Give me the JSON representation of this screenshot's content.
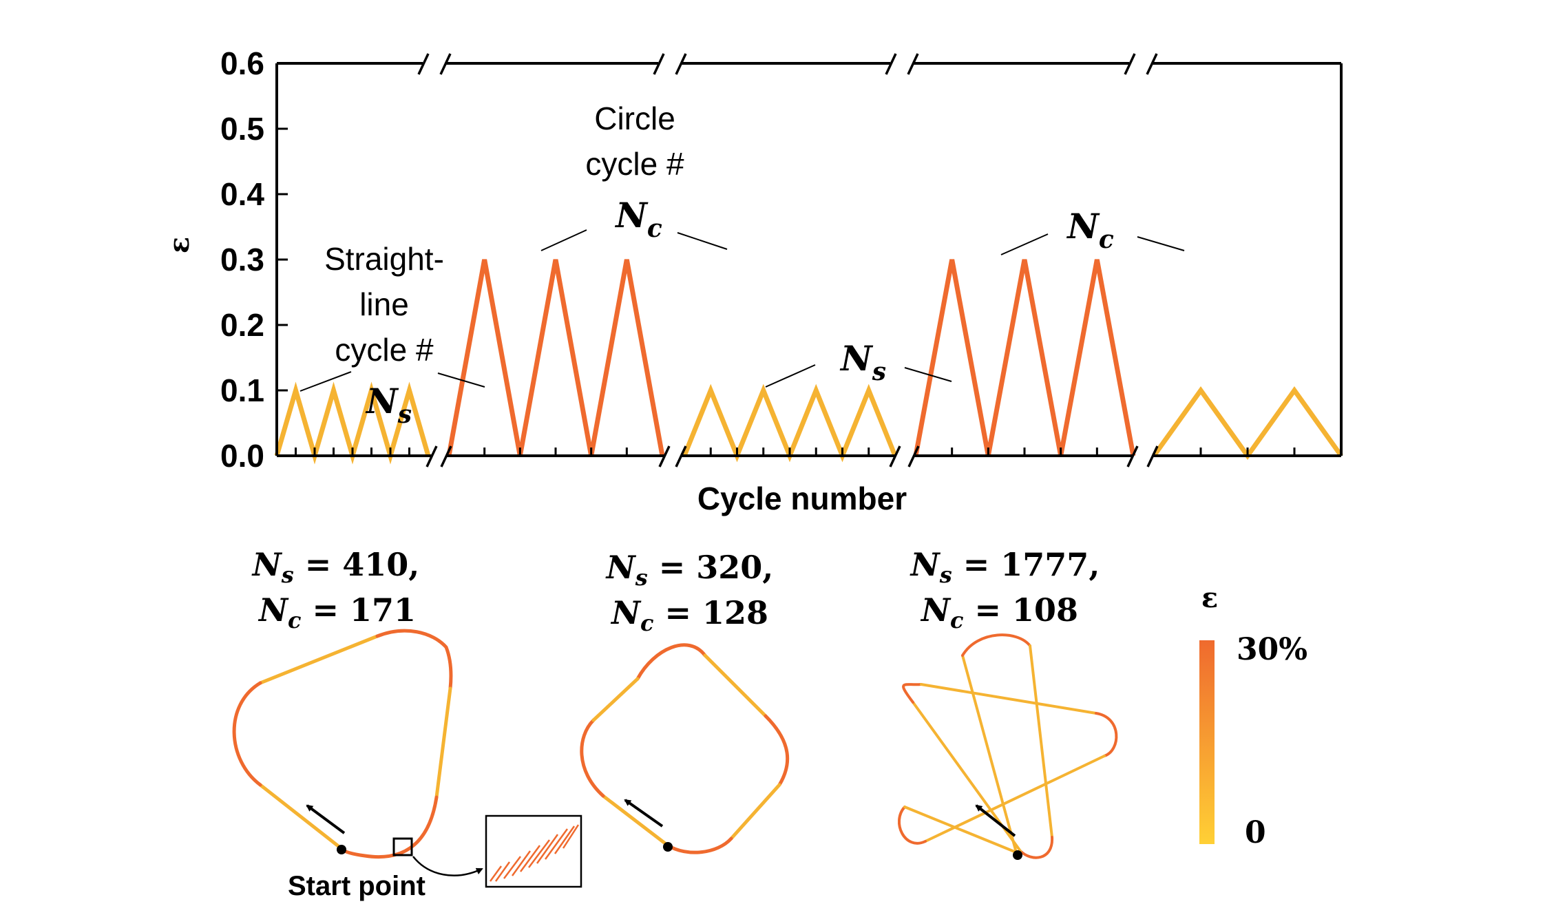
{
  "chart_data": {
    "type": "line",
    "xlabel": "Cycle number",
    "ylabel": "ε",
    "ylim": [
      0,
      0.6
    ],
    "yticks": [
      "0.0",
      "0.1",
      "0.2",
      "0.3",
      "0.4",
      "0.5",
      "0.6"
    ],
    "axis_breaks": 4,
    "series": [
      {
        "segment": "straight",
        "values": [
          0,
          0.1,
          0,
          0.1,
          0,
          0.1,
          0,
          0.1,
          0
        ]
      },
      {
        "segment": "circle",
        "values": [
          0,
          0.3,
          0,
          0.3,
          0,
          0.3,
          0
        ]
      },
      {
        "segment": "straight",
        "values": [
          0,
          0.1,
          0,
          0.1,
          0,
          0.1,
          0,
          0.1,
          0
        ]
      },
      {
        "segment": "circle",
        "values": [
          0,
          0.3,
          0,
          0.3,
          0,
          0.3,
          0
        ]
      },
      {
        "segment": "straight",
        "values": [
          0,
          0.1,
          0,
          0.1,
          0
        ]
      }
    ],
    "colors": {
      "straight": "#F5B332",
      "circle": "#EF6A2E",
      "axis": "#000000"
    },
    "annotations": {
      "straight_line": [
        "Straight-",
        "line",
        "cycle #"
      ],
      "circle": [
        "Circle",
        "cycle #"
      ],
      "ns": "N",
      "ns_sub": "s",
      "nc": "N",
      "nc_sub": "c"
    }
  },
  "shapes": [
    {
      "line1_prefix": "N",
      "line1_sub": "s",
      "line1_value": " = 410,",
      "line2_prefix": "N",
      "line2_sub": "c",
      "line2_value": " = 171"
    },
    {
      "line1_prefix": "N",
      "line1_sub": "s",
      "line1_value": " = 320,",
      "line2_prefix": "N",
      "line2_sub": "c",
      "line2_value": " = 128"
    },
    {
      "line1_prefix": "N",
      "line1_sub": "s",
      "line1_value": " = 1777,",
      "line2_prefix": "N",
      "line2_sub": "c",
      "line2_value": " = 108"
    }
  ],
  "start_point_label": "Start point",
  "colorbar": {
    "title": "ε",
    "max_label": "30%",
    "min_label": "0",
    "color_max": "#EF6A2E",
    "color_min": "#FFD035"
  }
}
